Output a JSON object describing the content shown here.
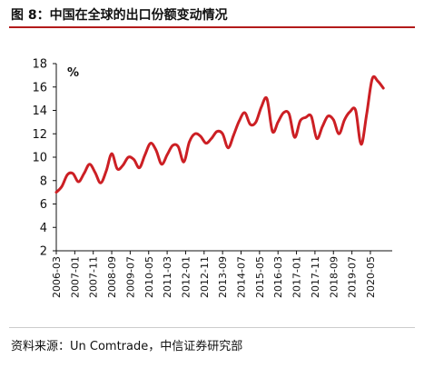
{
  "header": {
    "title": "图 8：中国在全球的出口份额变动情况"
  },
  "footer": {
    "source": "资料来源：Un Comtrade，中信证券研究部"
  },
  "chart_data": {
    "type": "line",
    "title": "图 8：中国在全球的出口份额变动情况",
    "xlabel": "",
    "ylabel": "%",
    "ylim": [
      2,
      18
    ],
    "yticks": [
      2,
      4,
      6,
      8,
      10,
      12,
      14,
      16,
      18
    ],
    "grid": false,
    "line_color": "#cc1f24",
    "x_tick_labels": [
      "2006-03",
      "2007-01",
      "2007-11",
      "2008-09",
      "2009-07",
      "2010-05",
      "2011-03",
      "2012-01",
      "2012-11",
      "2013-09",
      "2014-07",
      "2015-05",
      "2016-03",
      "2017-01",
      "2017-11",
      "2018-09",
      "2019-07",
      "2020-05"
    ],
    "series": [
      {
        "x": [
          "2006-03",
          "2006-06",
          "2006-09",
          "2006-12",
          "2007-03",
          "2007-06",
          "2007-09",
          "2007-12",
          "2008-03",
          "2008-06",
          "2008-09",
          "2008-12",
          "2009-03",
          "2009-06",
          "2009-09",
          "2009-12",
          "2010-03",
          "2010-06",
          "2010-09",
          "2010-12",
          "2011-03",
          "2011-06",
          "2011-09",
          "2011-12",
          "2012-03",
          "2012-06",
          "2012-09",
          "2012-12",
          "2013-03",
          "2013-06",
          "2013-09",
          "2013-12",
          "2014-03",
          "2014-06",
          "2014-09",
          "2014-12",
          "2015-03",
          "2015-06",
          "2015-09",
          "2015-12",
          "2016-03",
          "2016-06",
          "2016-09",
          "2016-12",
          "2017-03",
          "2017-06",
          "2017-09",
          "2017-12",
          "2018-03",
          "2018-06",
          "2018-09",
          "2018-12",
          "2019-03",
          "2019-06",
          "2019-09",
          "2019-12",
          "2020-03",
          "2020-06",
          "2020-09",
          "2020-12"
        ],
        "values": [
          7.0,
          7.5,
          8.5,
          8.6,
          7.9,
          8.6,
          9.4,
          8.7,
          7.8,
          8.8,
          10.3,
          9.0,
          9.3,
          10.0,
          9.8,
          9.1,
          10.2,
          11.2,
          10.6,
          9.4,
          10.2,
          11.0,
          10.9,
          9.6,
          11.3,
          12.0,
          11.8,
          11.2,
          11.6,
          12.2,
          12.0,
          10.8,
          11.9,
          13.1,
          13.8,
          12.8,
          13.0,
          14.3,
          15.0,
          12.2,
          13.0,
          13.8,
          13.7,
          11.7,
          13.1,
          13.4,
          13.5,
          11.6,
          12.6,
          13.5,
          13.2,
          12.0,
          13.2,
          13.9,
          14.0,
          11.1,
          13.7,
          16.7,
          16.5,
          15.9
        ]
      }
    ]
  }
}
